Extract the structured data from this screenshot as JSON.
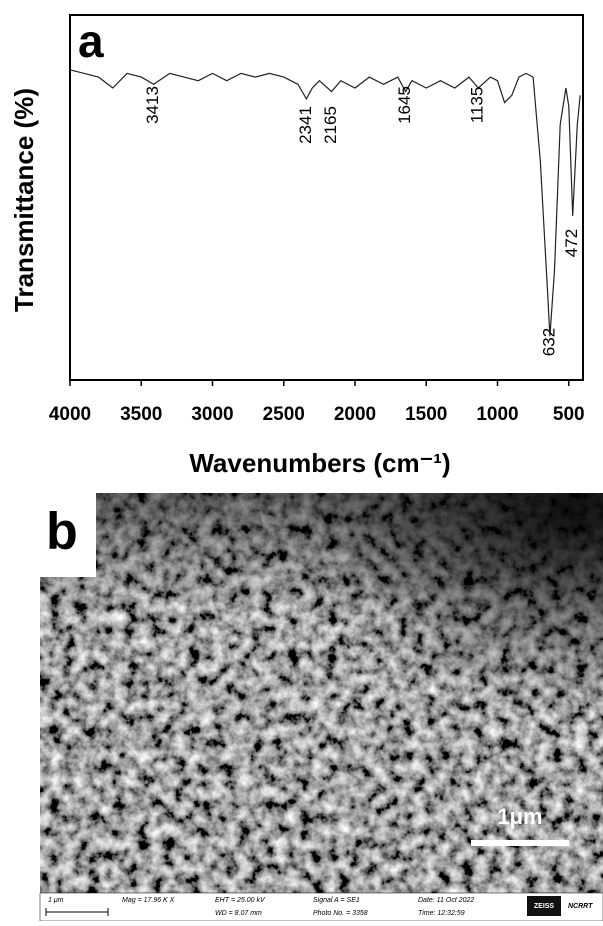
{
  "chart_data": {
    "type": "line",
    "panel_label": "a",
    "x_label": "Wavenumbers (cm⁻¹)",
    "y_label": "Transmittance (%)",
    "x": [
      4000,
      3900,
      3800,
      3700,
      3600,
      3500,
      3413,
      3300,
      3200,
      3100,
      3000,
      2900,
      2800,
      2700,
      2600,
      2500,
      2400,
      2341,
      2300,
      2250,
      2165,
      2100,
      2000,
      1900,
      1800,
      1700,
      1645,
      1600,
      1500,
      1400,
      1300,
      1200,
      1135,
      1050,
      1000,
      950,
      900,
      850,
      800,
      750,
      700,
      650,
      632,
      600,
      560,
      520,
      500,
      472,
      440,
      420
    ],
    "values": [
      85,
      84,
      83,
      80,
      84,
      83,
      81,
      84,
      83,
      82,
      84,
      82,
      84,
      83,
      84,
      83,
      81,
      77,
      80,
      82,
      79,
      82,
      80,
      83,
      81,
      83,
      79,
      82,
      80,
      82,
      80,
      83,
      80,
      83,
      82,
      76,
      78,
      83,
      84,
      83,
      60,
      25,
      12,
      30,
      70,
      80,
      75,
      45,
      70,
      78
    ],
    "color": "#222222",
    "xlim": [
      4000,
      400
    ],
    "ylim": [
      0,
      100
    ],
    "xticks": [
      4000,
      3500,
      3000,
      2500,
      2000,
      1500,
      1000,
      500
    ],
    "peaks": [
      3413,
      2341,
      2165,
      1645,
      1135,
      632,
      472
    ]
  },
  "sem": {
    "panel_label": "b",
    "scale_bar": "1μm",
    "info": {
      "scale": "1 μm",
      "mag": "Mag =  17.96 K X",
      "eht": "EHT = 25.00 kV",
      "wd": "WD = 8.07 mm",
      "signal": "Signal A = SE1",
      "photo": "Photo No. = 3358",
      "date": "Date: 11 Oct 2022",
      "time": "Time: 12:32:59",
      "brand": "ZEISS",
      "lab": "NCRRT"
    }
  }
}
